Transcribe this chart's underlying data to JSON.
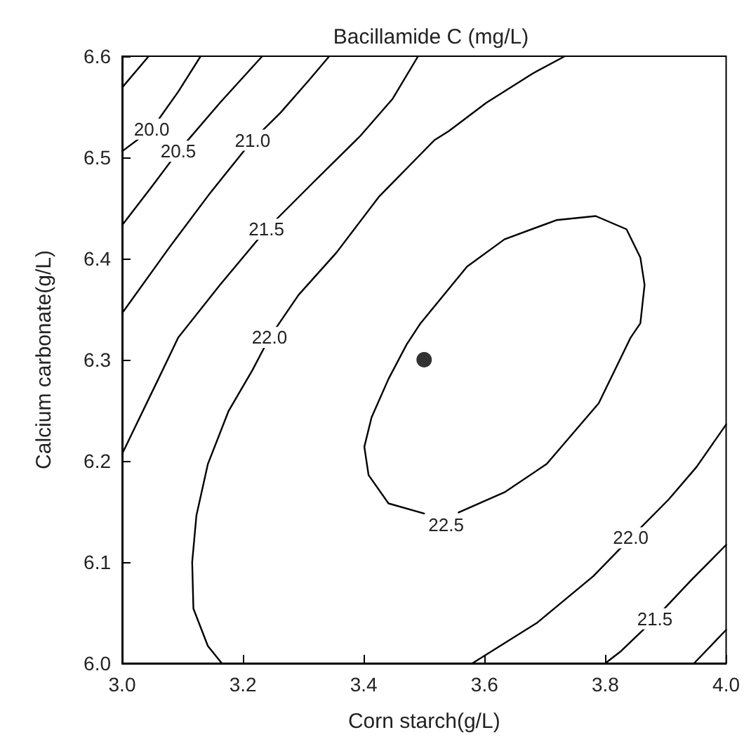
{
  "chart_data": {
    "type": "line",
    "title": "Bacillamide C (mg/L)",
    "xlabel": "Corn starch(g/L)",
    "ylabel": "Calcium carbonate(g/L)",
    "xlim": [
      3.0,
      4.0
    ],
    "xticks": [
      {
        "value": 3.0,
        "label": "3.0"
      },
      {
        "value": 3.2,
        "label": "3.2"
      },
      {
        "value": 3.4,
        "label": "3.4"
      },
      {
        "value": 3.6,
        "label": "3.6"
      },
      {
        "value": 3.8,
        "label": "3.8"
      },
      {
        "value": 4.0,
        "label": "4.0"
      }
    ],
    "ylim": [
      6.0,
      6.6
    ],
    "yticks": [
      {
        "value": 6.0,
        "label": "6.0"
      },
      {
        "value": 6.1,
        "label": "6.1"
      },
      {
        "value": 6.2,
        "label": "6.2"
      },
      {
        "value": 6.3,
        "label": "6.3"
      },
      {
        "value": 6.4,
        "label": "6.4"
      },
      {
        "value": 6.5,
        "label": "6.5"
      },
      {
        "value": 6.6,
        "label": "6.6"
      }
    ],
    "grid": false,
    "legend": false,
    "marker": "none",
    "line_style": "solid",
    "series": [
      {
        "color": "#000000",
        "x": [
          3.0,
          3.044
        ],
        "values": [
          6.569,
          6.6
        ]
      },
      {
        "name": "20.0",
        "color": "#000000",
        "x": [
          3.0,
          3.049,
          3.093,
          3.13
        ],
        "values": [
          6.506,
          6.528,
          6.565,
          6.6
        ]
      },
      {
        "name": "20.5",
        "color": "#000000",
        "x": [
          3.0,
          3.049,
          3.093,
          3.162,
          3.232
        ],
        "values": [
          6.433,
          6.471,
          6.506,
          6.554,
          6.6
        ]
      },
      {
        "name": "21.0",
        "color": "#000000",
        "x": [
          3.0,
          3.077,
          3.146,
          3.216,
          3.262,
          3.309,
          3.343
        ],
        "values": [
          6.346,
          6.41,
          6.465,
          6.517,
          6.544,
          6.576,
          6.6
        ]
      },
      {
        "color": "#000000",
        "x": [
          3.947,
          4.0
        ],
        "values": [
          6.0,
          6.033
        ]
      },
      {
        "name": "21.5",
        "color": "#000000",
        "x": [
          3.0,
          3.06,
          3.093,
          3.162,
          3.239,
          3.316,
          3.394,
          3.448,
          3.49,
          3.6,
          3.8,
          3.826,
          3.882,
          3.942,
          4.0
        ],
        "values": [
          6.207,
          6.281,
          6.322,
          6.374,
          6.429,
          6.475,
          6.521,
          6.558,
          6.6,
          null,
          6.0,
          6.012,
          6.044,
          6.082,
          6.117
        ]
      },
      {
        "name": "22.0",
        "color": "#000000",
        "x": [
          3.165,
          3.142,
          3.118,
          3.116,
          3.123,
          3.142,
          3.176,
          3.216,
          3.244,
          3.292,
          3.355,
          3.425,
          3.517,
          3.541,
          3.603,
          3.68,
          3.733,
          3.6,
          3.58,
          3.687,
          3.78,
          3.842,
          3.905,
          3.951,
          4.0
        ],
        "values": [
          6.0,
          6.017,
          6.054,
          6.1,
          6.146,
          6.197,
          6.249,
          6.29,
          6.322,
          6.364,
          6.406,
          6.461,
          6.517,
          6.526,
          6.554,
          6.583,
          6.6,
          null,
          6.0,
          6.04,
          6.086,
          6.124,
          6.162,
          6.194,
          6.236
        ]
      },
      {
        "name": "22.5",
        "color": "#000000",
        "x": [
          3.557,
          3.633,
          3.703,
          3.789,
          3.842,
          3.858,
          3.865,
          3.858,
          3.835,
          3.784,
          3.719,
          3.633,
          3.571,
          3.494,
          3.471,
          3.441,
          3.413,
          3.401,
          3.408,
          3.441,
          3.5
        ],
        "values": [
          6.149,
          6.169,
          6.197,
          6.257,
          6.322,
          6.336,
          6.374,
          6.401,
          6.429,
          6.442,
          6.438,
          6.419,
          6.392,
          6.336,
          6.315,
          6.281,
          6.243,
          6.214,
          6.186,
          6.158,
          6.148
        ]
      },
      {
        "type": "scatter",
        "marker": "circle",
        "color": "#000000",
        "x": [
          3.5
        ],
        "values": [
          6.3
        ]
      }
    ]
  }
}
